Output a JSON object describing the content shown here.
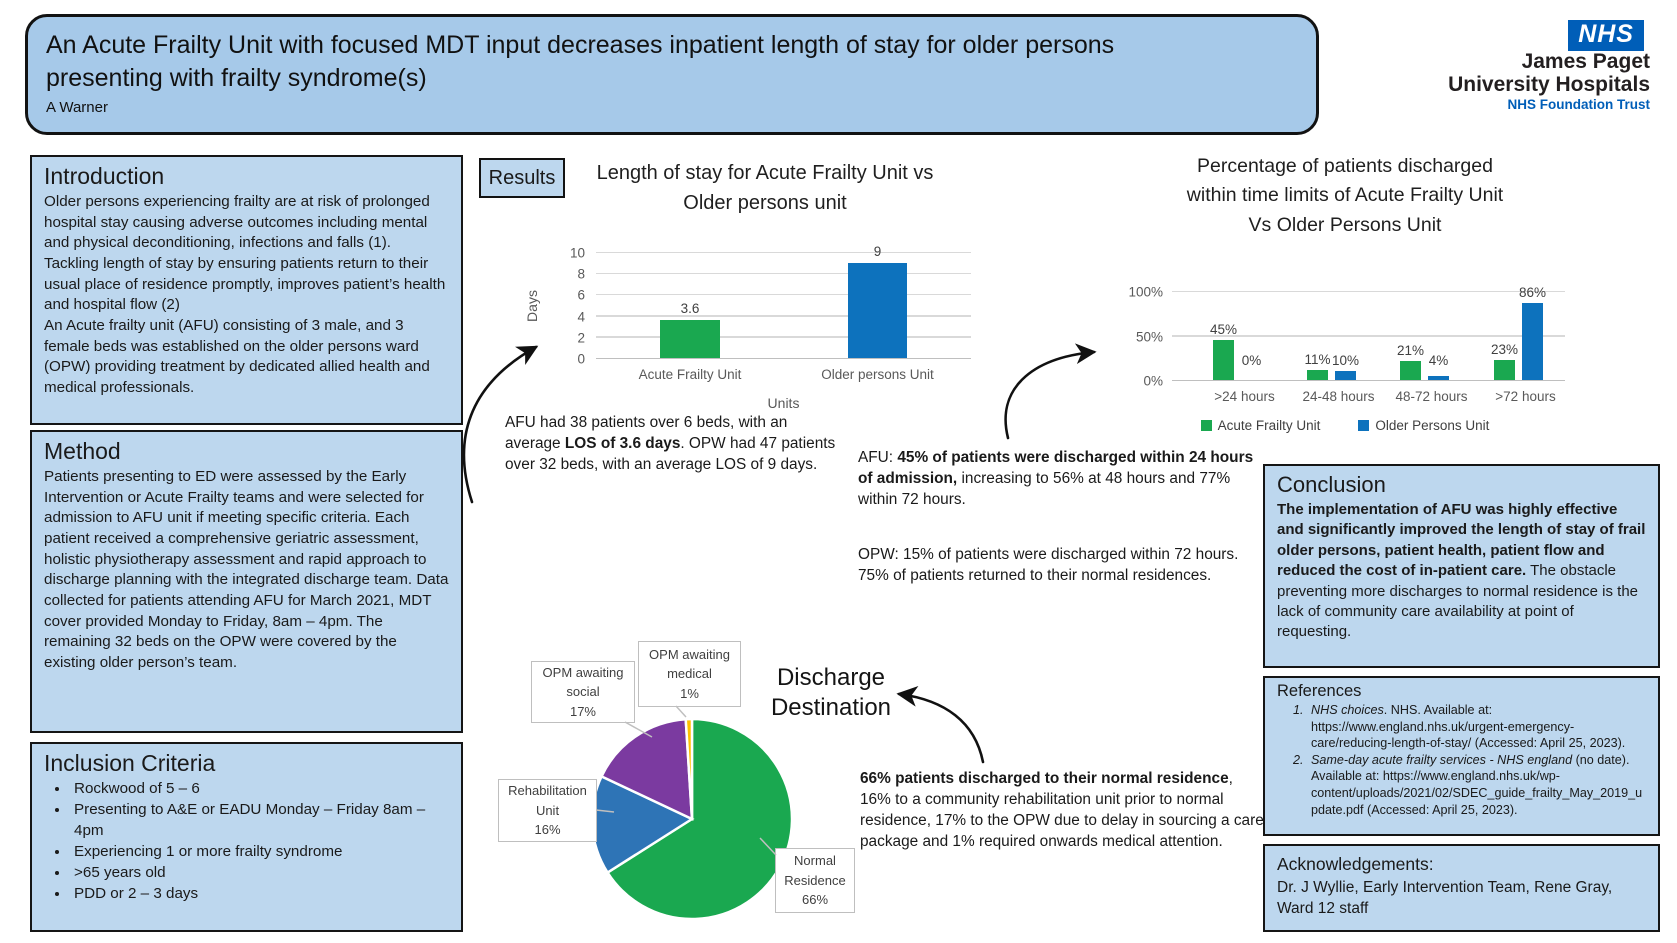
{
  "header": {
    "title": "An Acute Frailty Unit with focused MDT input decreases inpatient length of stay for older persons\npresenting with frailty syndrome(s)",
    "author": "A Warner"
  },
  "logo": {
    "nhs": "NHS",
    "org_line1": "James Paget",
    "org_line2": "University Hospitals",
    "trust": "NHS Foundation Trust"
  },
  "results_label": "Results",
  "sections": {
    "introduction": {
      "heading": "Introduction",
      "body": "Older persons experiencing frailty are at risk of prolonged hospital stay causing adverse outcomes including mental and physical deconditioning, infections and falls (1). Tackling length of stay by ensuring patients return to their usual place of residence promptly, improves patient’s health and hospital flow (2)\nAn Acute frailty unit (AFU) consisting of 3 male, and 3 female beds was established on the older persons ward (OPW) providing treatment by dedicated allied health and medical professionals."
    },
    "method": {
      "heading": "Method",
      "body": "Patients presenting to ED were assessed by the Early Intervention or Acute Frailty teams and were selected for admission to AFU unit if meeting specific criteria. Each patient received a comprehensive geriatric assessment, holistic physiotherapy assessment and rapid approach to discharge planning with the integrated discharge team. Data collected for patients attending AFU for March 2021, MDT cover provided Monday to Friday, 8am – 4pm. The remaining 32 beds on the OPW were covered by the existing older person’s team."
    },
    "inclusion": {
      "heading": "Inclusion Criteria",
      "items": [
        "Rockwood of 5 – 6",
        "Presenting to A&E or EADU Monday – Friday 8am – 4pm",
        "Experiencing 1 or more frailty syndrome",
        ">65 years old",
        "PDD or 2 – 3 days"
      ]
    },
    "conclusion": {
      "heading": "Conclusion",
      "body": [
        {
          "t": "The implementation of AFU was highly effective and significantly improved the length of stay of frail older persons, patient health, patient flow and reduced the cost of in-patient care.",
          "b": 1
        },
        {
          "t": " The obstacle preventing more discharges to normal residence is the lack of community care availability at point of requesting."
        }
      ]
    },
    "references": {
      "heading": "References",
      "items": [
        [
          {
            "t": "NHS choices",
            "i": 1
          },
          {
            "t": ". NHS. Available at: https://www.england.nhs.uk/urgent-emergency-care/reducing-length-of-stay/ (Accessed: April 25, 2023)."
          }
        ],
        [
          {
            "t": "Same-day acute frailty services - NHS england",
            "i": 1
          },
          {
            "t": " (no date). Available at: https://www.england.nhs.uk/wp-content/uploads/2021/02/SDEC_guide_frailty_May_2019_update.pdf (Accessed: April 25, 2023)."
          }
        ]
      ]
    },
    "acknowledgements": {
      "heading": "Acknowledgements:",
      "body": "Dr. J Wyllie, Early Intervention Team, Rene Gray, Ward 12 staff"
    }
  },
  "notes": {
    "los": [
      {
        "t": "AFU had 38 patients over 6 beds, with an average "
      },
      {
        "t": "LOS of 3.6 days",
        "b": 1
      },
      {
        "t": ". OPW had 47 patients over 32 beds, with an average LOS of 9 days."
      }
    ],
    "afu": [
      {
        "t": "AFU: "
      },
      {
        "t": "45% of patients were discharged within 24 hours of admission,",
        "b": 1
      },
      {
        "t": " increasing to 56% at 48 hours and 77% within 72 hours."
      }
    ],
    "opw": [
      {
        "t": "OPW: 15% of patients were discharged within 72 hours. 75% of patients returned to their normal residences."
      }
    ],
    "discharge": [
      {
        "t": "66% patients discharged to their normal residence",
        "b": 1
      },
      {
        "t": ", 16% to a community rehabilitation unit prior to normal residence, 17% to the OPW due to delay in sourcing a care package and 1% required onwards medical attention."
      }
    ]
  },
  "colors": {
    "afu_green": "#1aa850",
    "opw_blue": "#0d72bd",
    "nhs_blue": "#005EB8",
    "box_fill": "#bdd7ee",
    "header_fill": "#a6c9e9"
  },
  "chart_data": [
    {
      "id": "los_chart",
      "type": "bar",
      "title": "Length of stay for Acute Frailty Unit vs\nOlder persons unit",
      "categories": [
        "Acute Frailty Unit",
        "Older persons Unit"
      ],
      "series": [
        {
          "name": "Days",
          "values": [
            3.6,
            9
          ]
        }
      ],
      "bar_colors": [
        "#1aa850",
        "#0d72bd"
      ],
      "data_labels": [
        "3.6",
        "9"
      ],
      "ylabel": "Days",
      "xlabel": "Units",
      "ylim": [
        0,
        10
      ],
      "yticks": [
        0,
        2,
        4,
        6,
        8,
        10
      ],
      "grid": true,
      "legend_position": "none"
    },
    {
      "id": "discharge_time_chart",
      "type": "bar",
      "title": "Percentage of patients discharged\nwithin time limits of Acute Frailty Unit\nVs Older Persons Unit",
      "categories": [
        ">24 hours",
        "24-48 hours",
        "48-72 hours",
        ">72 hours"
      ],
      "series": [
        {
          "name": "Acute Frailty Unit",
          "color": "#1aa850",
          "values": [
            45,
            11,
            21,
            23
          ],
          "data_labels": [
            "45%",
            "11%",
            "21%",
            "23%"
          ]
        },
        {
          "name": "Older Persons Unit",
          "color": "#0d72bd",
          "values": [
            0,
            10,
            4,
            86
          ],
          "data_labels": [
            "0%",
            "10%",
            "4%",
            "86%"
          ]
        }
      ],
      "ylim": [
        0,
        100
      ],
      "yticks": [
        {
          "v": 0,
          "label": "0%"
        },
        {
          "v": 50,
          "label": "50%"
        },
        {
          "v": 100,
          "label": "100%"
        }
      ],
      "grid": true,
      "legend_position": "bottom"
    },
    {
      "id": "discharge_destination_pie",
      "type": "pie",
      "title": "Discharge\nDestination",
      "slices": [
        {
          "label": "Normal Residence",
          "pct": 66,
          "color": "#1aa850",
          "callout": "Normal\nResidence\n66%"
        },
        {
          "label": "Rehabilitation Unit",
          "pct": 16,
          "color": "#2e74b6",
          "callout": "Rehabilitation\nUnit\n16%"
        },
        {
          "label": "OPM awaiting social",
          "pct": 17,
          "color": "#7b3aa0",
          "callout": "OPM awaiting\nsocial\n17%"
        },
        {
          "label": "OPM awaiting medical",
          "pct": 1,
          "color": "#ffc000",
          "callout": "OPM awaiting\nmedical\n1%"
        }
      ]
    }
  ]
}
